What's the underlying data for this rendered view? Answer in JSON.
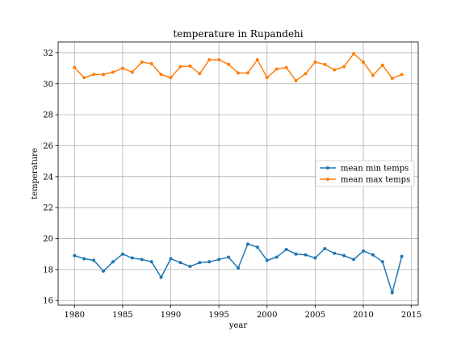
{
  "chart_data": {
    "type": "line",
    "title": "temperature in Rupandehi",
    "xlabel": "year",
    "ylabel": "temperature",
    "xlim": [
      1978.3,
      2015.7
    ],
    "ylim": [
      15.7,
      32.7
    ],
    "xticks": [
      1980,
      1985,
      1990,
      1995,
      2000,
      2005,
      2010,
      2015
    ],
    "yticks": [
      16,
      18,
      20,
      22,
      24,
      26,
      28,
      30,
      32
    ],
    "grid": true,
    "legend_position": "center-right",
    "x": [
      1980,
      1981,
      1982,
      1983,
      1984,
      1985,
      1986,
      1987,
      1988,
      1989,
      1990,
      1991,
      1992,
      1993,
      1994,
      1995,
      1996,
      1997,
      1998,
      1999,
      2000,
      2001,
      2002,
      2003,
      2004,
      2005,
      2006,
      2007,
      2008,
      2009,
      2010,
      2011,
      2012,
      2013,
      2014
    ],
    "series": [
      {
        "name": "mean min temps",
        "color": "#1f77b4",
        "values": [
          18.9,
          18.7,
          18.6,
          17.9,
          18.5,
          19.0,
          18.75,
          18.65,
          18.5,
          17.5,
          18.7,
          18.45,
          18.2,
          18.45,
          18.5,
          18.65,
          18.8,
          18.1,
          19.65,
          19.45,
          18.6,
          18.8,
          19.3,
          19.0,
          18.95,
          18.75,
          19.35,
          19.05,
          18.9,
          18.65,
          19.2,
          18.95,
          18.5,
          16.5,
          18.85
        ]
      },
      {
        "name": "mean max temps",
        "color": "#ff7f0e",
        "values": [
          31.05,
          30.4,
          30.6,
          30.6,
          30.75,
          31.0,
          30.75,
          31.4,
          31.3,
          30.6,
          30.4,
          31.1,
          31.15,
          30.65,
          31.55,
          31.55,
          31.25,
          30.7,
          30.7,
          31.55,
          30.4,
          30.95,
          31.05,
          30.2,
          30.65,
          31.4,
          31.25,
          30.9,
          31.1,
          31.95,
          31.4,
          30.55,
          31.2,
          30.35,
          30.6
        ]
      }
    ]
  }
}
